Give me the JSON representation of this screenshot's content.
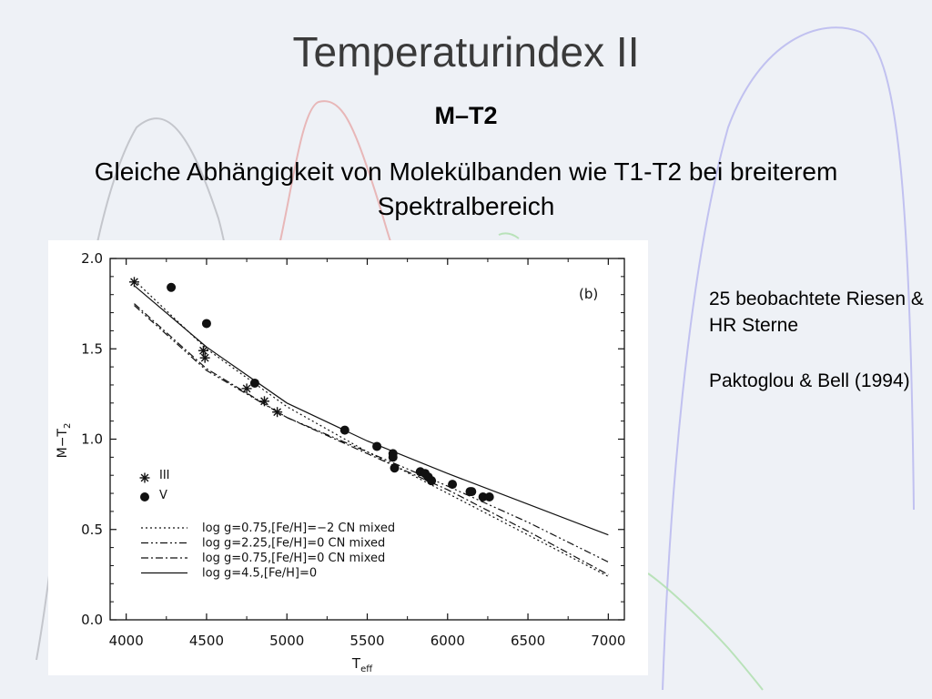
{
  "slide": {
    "title": "Temperaturindex II",
    "subtitle": "M–T2",
    "description": "Gleiche Abhängigkeit von Molekülbanden wie T1-T2 bei breiterem Spektralbereich",
    "notes": [
      "25 beobachtete Riesen & HR Sterne",
      "Paktoglou & Bell (1994)"
    ]
  },
  "colors": {
    "background": "#eef1f6",
    "bg_curve_gray": "#b9bcc2",
    "bg_curve_red": "#e6a9a9",
    "bg_curve_blue": "#b9b9ee",
    "bg_curve_green": "#b3e0b3"
  },
  "chart_data": {
    "type": "scatter",
    "panel_label": "(b)",
    "xlabel": "T",
    "xlabel_sub": "eff",
    "ylabel": "M−T",
    "ylabel_sub": "2",
    "xlim": [
      3900,
      7100
    ],
    "ylim": [
      0.0,
      2.0
    ],
    "xticks": [
      4000,
      4500,
      5000,
      5500,
      6000,
      6500,
      7000
    ],
    "yticks": [
      0.0,
      0.5,
      1.0,
      1.5,
      2.0
    ],
    "ytick_labels": [
      "0.0",
      "0.5",
      "1.0",
      "1.5",
      "2.0"
    ],
    "points": [
      {
        "name": "III",
        "marker": "asterisk",
        "x": [
          4050,
          4480,
          4490,
          4750,
          4860,
          4940
        ],
        "y": [
          1.87,
          1.49,
          1.45,
          1.28,
          1.21,
          1.15
        ]
      },
      {
        "name": "V",
        "marker": "circle",
        "x": [
          4280,
          4500,
          4800,
          5360,
          5560,
          5660,
          5660,
          5670,
          5830,
          5860,
          5880,
          5900,
          6030,
          6140,
          6150,
          6220,
          6260
        ],
        "y": [
          1.84,
          1.64,
          1.31,
          1.05,
          0.96,
          0.92,
          0.9,
          0.84,
          0.82,
          0.81,
          0.79,
          0.77,
          0.75,
          0.71,
          0.71,
          0.68,
          0.68
        ]
      }
    ],
    "lines": [
      {
        "name": "log g=0.75,[Fe/H]=−2 CN mixed",
        "dash": "2,3",
        "x": [
          4050,
          4500,
          5000,
          5500,
          6000,
          6500,
          7000
        ],
        "y": [
          1.88,
          1.5,
          1.18,
          0.93,
          0.7,
          0.47,
          0.24
        ]
      },
      {
        "name": "log g=2.25,[Fe/H]=0 CN mixed",
        "dash": "8,3,2,3,2,3",
        "x": [
          4050,
          4500,
          5000,
          5500,
          6000,
          6500,
          7000
        ],
        "y": [
          1.74,
          1.38,
          1.12,
          0.93,
          0.74,
          0.54,
          0.32
        ]
      },
      {
        "name": "log g=0.75,[Fe/H]=0 CN mixed",
        "dash": "8,3,2,3",
        "x": [
          4050,
          4500,
          5000,
          5500,
          6000,
          6500,
          7000
        ],
        "y": [
          1.75,
          1.39,
          1.12,
          0.92,
          0.72,
          0.49,
          0.25
        ]
      },
      {
        "name": "log g=4.5,[Fe/H]=0",
        "dash": "",
        "x": [
          4050,
          4500,
          5000,
          5500,
          6000,
          6500,
          7000
        ],
        "y": [
          1.85,
          1.51,
          1.2,
          0.99,
          0.81,
          0.64,
          0.47
        ]
      }
    ]
  }
}
